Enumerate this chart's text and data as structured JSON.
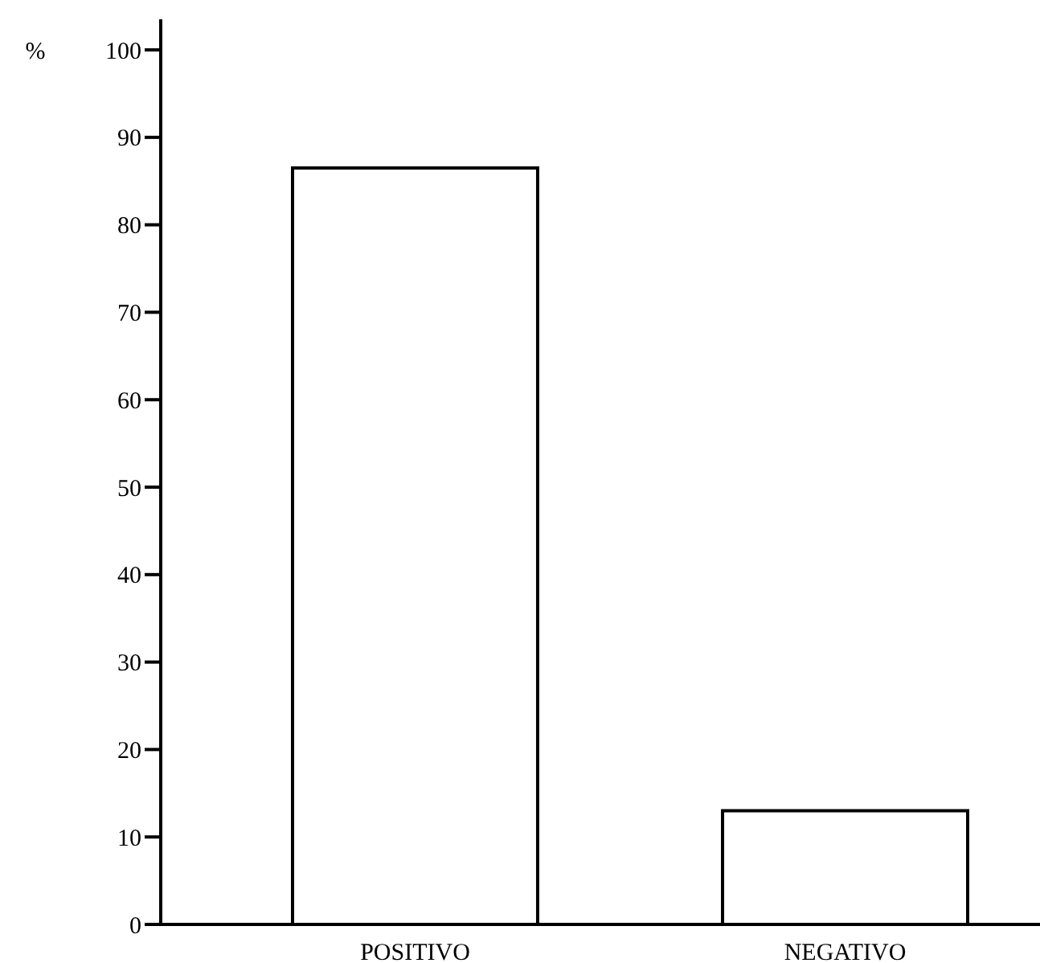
{
  "chart_data": {
    "type": "bar",
    "ylabel": "%",
    "categories": [
      "POSITIVO",
      "NEGATIVO"
    ],
    "values": [
      86.5,
      13
    ],
    "color": "#ffffff",
    "ylim": [
      0,
      103.5
    ],
    "yticks": [
      0,
      10,
      20,
      30,
      40,
      50,
      60,
      70,
      80,
      90,
      100
    ],
    "grid": false
  }
}
